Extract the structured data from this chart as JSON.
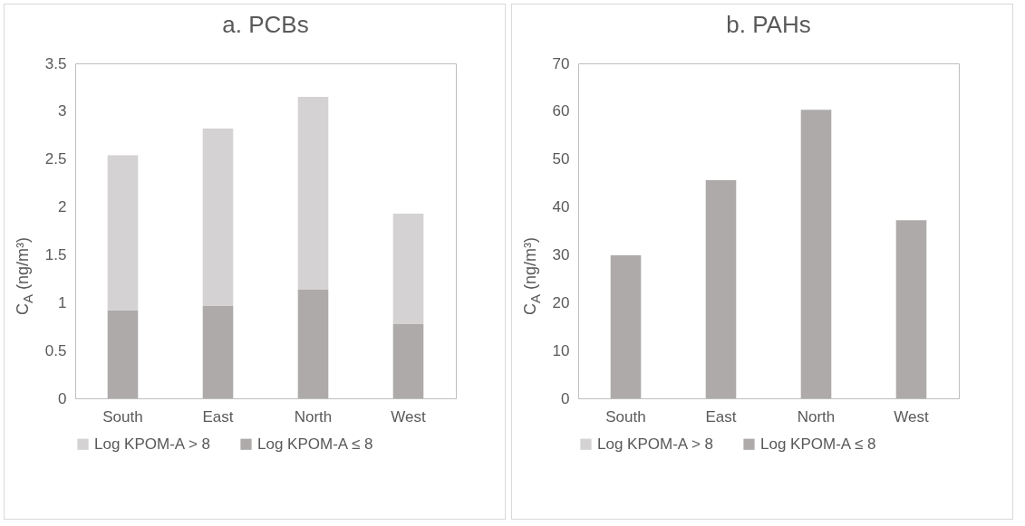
{
  "chart_data": [
    {
      "type": "bar",
      "title": "a. PCBs",
      "ylabel": "C$_{A}$ (ng/m³)",
      "categories": [
        "South",
        "East",
        "North",
        "West"
      ],
      "stacked": true,
      "ylim": [
        0,
        3.5
      ],
      "yticks": [
        0,
        0.5,
        1,
        1.5,
        2,
        2.5,
        3,
        3.5
      ],
      "legend": "bottom",
      "series": [
        {
          "name": "Log KPOM-A ≤ 8",
          "color": "#aeaaaa",
          "values": [
            0.92,
            0.97,
            1.14,
            0.78
          ]
        },
        {
          "name": "Log KPOM-A > 8",
          "color": "#d4d2d2",
          "values": [
            1.62,
            1.85,
            2.01,
            1.15
          ]
        }
      ]
    },
    {
      "type": "bar",
      "title": "b. PAHs",
      "ylabel": "C$_{A}$ (ng/m³)",
      "categories": [
        "South",
        "East",
        "North",
        "West"
      ],
      "stacked": true,
      "ylim": [
        0,
        70
      ],
      "yticks": [
        0,
        10,
        20,
        30,
        40,
        50,
        60,
        70
      ],
      "legend": "bottom",
      "series": [
        {
          "name": "Log KPOM-A ≤ 8",
          "color": "#aeaaaa",
          "values": [
            29.9,
            45.6,
            60.3,
            37.2
          ]
        },
        {
          "name": "Log KPOM-A > 8",
          "color": "#d4d2d2",
          "values": [
            null,
            null,
            null,
            null
          ]
        }
      ]
    }
  ]
}
